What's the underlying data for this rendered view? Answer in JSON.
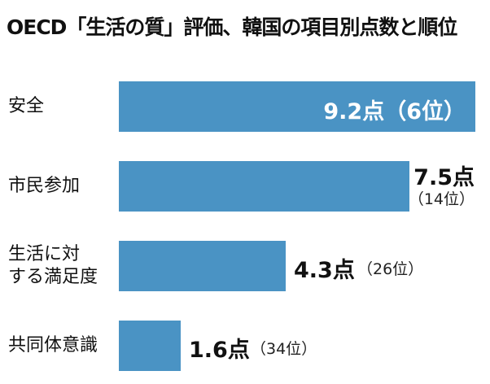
{
  "chart_data": {
    "type": "bar",
    "orientation": "horizontal",
    "title": "OECD「生活の質」評価、韓国の項目別点数と順位",
    "categories": [
      "安全",
      "市民参加",
      "生活に対\nする満足度",
      "共同体意識"
    ],
    "values": [
      9.2,
      7.5,
      4.3,
      1.6
    ],
    "value_labels": [
      "9.2点",
      "7.5点",
      "4.3点",
      "1.6点"
    ],
    "rank_labels": [
      "（6位）",
      "（14位）",
      "（26位）",
      "（34位）"
    ],
    "xlim": [
      0,
      9.2
    ],
    "bar_color": "#4a93c4",
    "grid": false,
    "legend": "none"
  }
}
